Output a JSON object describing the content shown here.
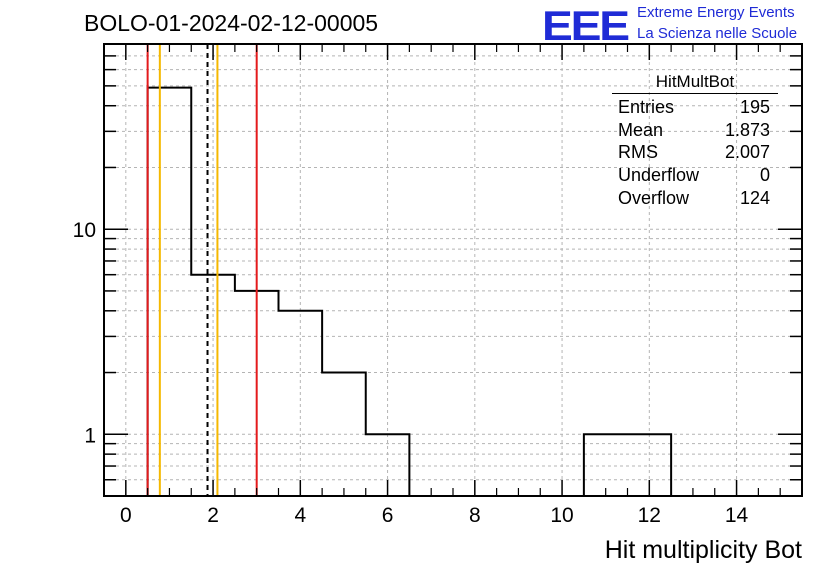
{
  "header": {
    "run_title": "BOLO-01-2024-02-12-00005",
    "logo_mark": "EEE",
    "logo_line1": "Extreme Energy Events",
    "logo_line2": "La Scienza nelle Scuole",
    "logo_color": "#1f2bd6"
  },
  "stats_box": {
    "title": "HitMultBot",
    "rows": [
      {
        "label": "Entries",
        "value": "195"
      },
      {
        "label": "Mean",
        "value": "1.873"
      },
      {
        "label": "RMS",
        "value": "2.007"
      },
      {
        "label": "Underflow",
        "value": "0"
      },
      {
        "label": "Overflow",
        "value": "124"
      }
    ]
  },
  "chart_data": {
    "type": "histogram",
    "title": "BOLO-01-2024-02-12-00005",
    "xlabel": "Hit multiplicity Bot",
    "ylabel": "",
    "xlim": [
      -0.5,
      15.5
    ],
    "ylim": [
      0.5,
      80
    ],
    "yscale": "log",
    "grid": true,
    "x_ticks": [
      0,
      2,
      4,
      6,
      8,
      10,
      12,
      14
    ],
    "x_tick_labels": [
      "0",
      "2",
      "4",
      "6",
      "8",
      "10",
      "12",
      "14"
    ],
    "y_ticks": [
      1,
      10
    ],
    "y_tick_labels": [
      "1",
      "10"
    ],
    "bins": [
      {
        "low": 0.5,
        "high": 1.5,
        "count": 49
      },
      {
        "low": 1.5,
        "high": 2.5,
        "count": 6
      },
      {
        "low": 2.5,
        "high": 3.5,
        "count": 5
      },
      {
        "low": 3.5,
        "high": 4.5,
        "count": 4
      },
      {
        "low": 4.5,
        "high": 5.5,
        "count": 2
      },
      {
        "low": 5.5,
        "high": 6.5,
        "count": 1
      },
      {
        "low": 10.5,
        "high": 11.5,
        "count": 1
      },
      {
        "low": 11.5,
        "high": 12.5,
        "count": 1
      }
    ],
    "vertical_lines": [
      {
        "x": 0.5,
        "color": "#e41a1c",
        "style": "solid"
      },
      {
        "x": 0.78,
        "color": "#f5b800",
        "style": "solid"
      },
      {
        "x": 1.873,
        "color": "#000000",
        "style": "dashed"
      },
      {
        "x": 2.1,
        "color": "#f5b800",
        "style": "solid"
      },
      {
        "x": 3.0,
        "color": "#e41a1c",
        "style": "solid"
      }
    ],
    "legend": "top-right"
  }
}
